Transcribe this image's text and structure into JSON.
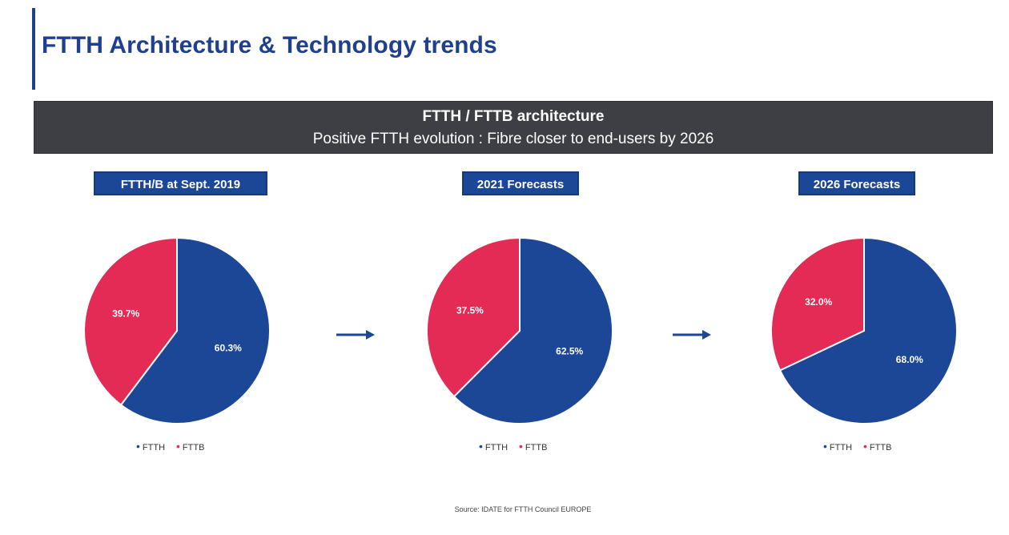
{
  "title": "FTTH Architecture & Technology trends",
  "banner": {
    "heading": "FTTH / FTTB architecture",
    "subheading": "Positive FTTH evolution : Fibre closer to end-users by 2026"
  },
  "colors": {
    "ftth": "#1c4696",
    "fttb": "#e32b56",
    "accent": "#1f3f8f",
    "banner_bg": "#3d3f44"
  },
  "legend": {
    "ftth": "FTTH",
    "fttb": "FTTB"
  },
  "source": "Source: IDATE for FTTH Council EUROPE",
  "chart_data": [
    {
      "type": "pie",
      "title": "FTTH/B at Sept. 2019",
      "categories": [
        "FTTH",
        "FTTB"
      ],
      "values": [
        60.3,
        39.7
      ],
      "labels": [
        "60.3%",
        "39.7%"
      ]
    },
    {
      "type": "pie",
      "title": "2021 Forecasts",
      "categories": [
        "FTTH",
        "FTTB"
      ],
      "values": [
        62.5,
        37.5
      ],
      "labels": [
        "62.5%",
        "37.5%"
      ]
    },
    {
      "type": "pie",
      "title": "2026 Forecasts",
      "categories": [
        "FTTH",
        "FTTB"
      ],
      "values": [
        68.0,
        32.0
      ],
      "labels": [
        "68.0%",
        "32.0%"
      ]
    }
  ]
}
